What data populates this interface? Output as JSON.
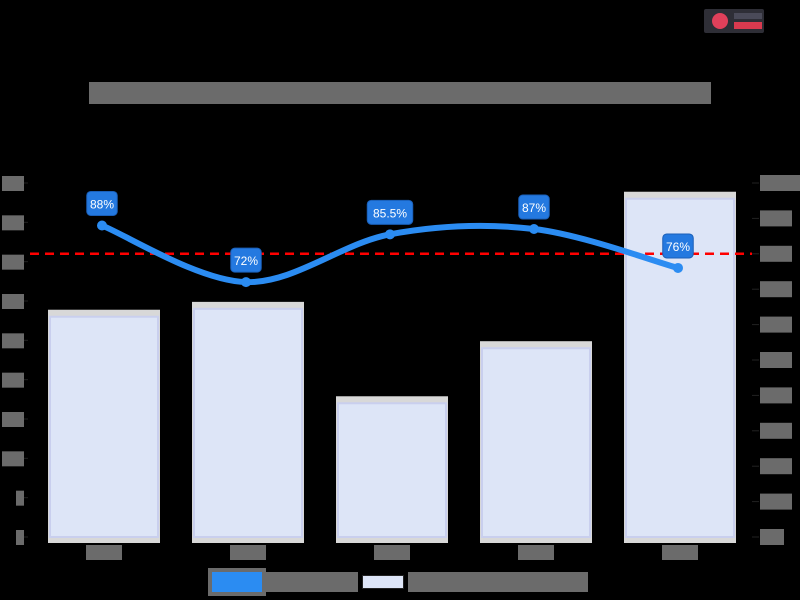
{
  "chart": {
    "title": "[title text obscured]",
    "logo": {
      "name": "watermark-logo",
      "accent": "#e0405a"
    }
  },
  "colors": {
    "background": "#000000",
    "bar_fill": "#dde5f7",
    "bar_border": "#c9cfee",
    "bar_base": "#d8d8d8",
    "line": "#2b8cf2",
    "label_bg": "#2479e0",
    "target_line": "#ff0000",
    "obscured_text": "#6b6b6b"
  },
  "chart_data": {
    "type": "bar+line",
    "title": "[obscured]",
    "categories": [
      "[cat 1]",
      "[cat 2]",
      "[cat 3]",
      "[cat 4]",
      "[cat 5]"
    ],
    "series": [
      {
        "name": "[bar series, left axis]",
        "type": "bar",
        "axis": "left",
        "values": [
          28,
          29,
          17,
          24,
          43
        ]
      },
      {
        "name": "[line series, right axis]",
        "type": "line",
        "axis": "right",
        "values": [
          88,
          72,
          85.5,
          87,
          76
        ],
        "labels": [
          "88%",
          "72%",
          "85.5%",
          "87%",
          "76%"
        ]
      }
    ],
    "reference_lines": [
      {
        "axis": "right",
        "value": 80,
        "style": "dashed",
        "color": "#ff0000"
      }
    ],
    "left_axis": {
      "ylim": [
        0,
        45
      ],
      "ticks": [
        0,
        5,
        10,
        15,
        20,
        25,
        30,
        35,
        40,
        45
      ]
    },
    "right_axis": {
      "ylim": [
        0,
        100
      ],
      "ticks": [
        "0%",
        "10%",
        "20%",
        "30%",
        "40%",
        "50%",
        "60%",
        "70%",
        "80%",
        "90%",
        "100%"
      ]
    },
    "xlabel": "",
    "ylabel": "",
    "grid": false,
    "legend_position": "bottom"
  },
  "legend": {
    "items": [
      {
        "label": "[line series legend text]",
        "kind": "line"
      },
      {
        "label": "[bar series legend text obscured]",
        "kind": "bar"
      }
    ]
  }
}
